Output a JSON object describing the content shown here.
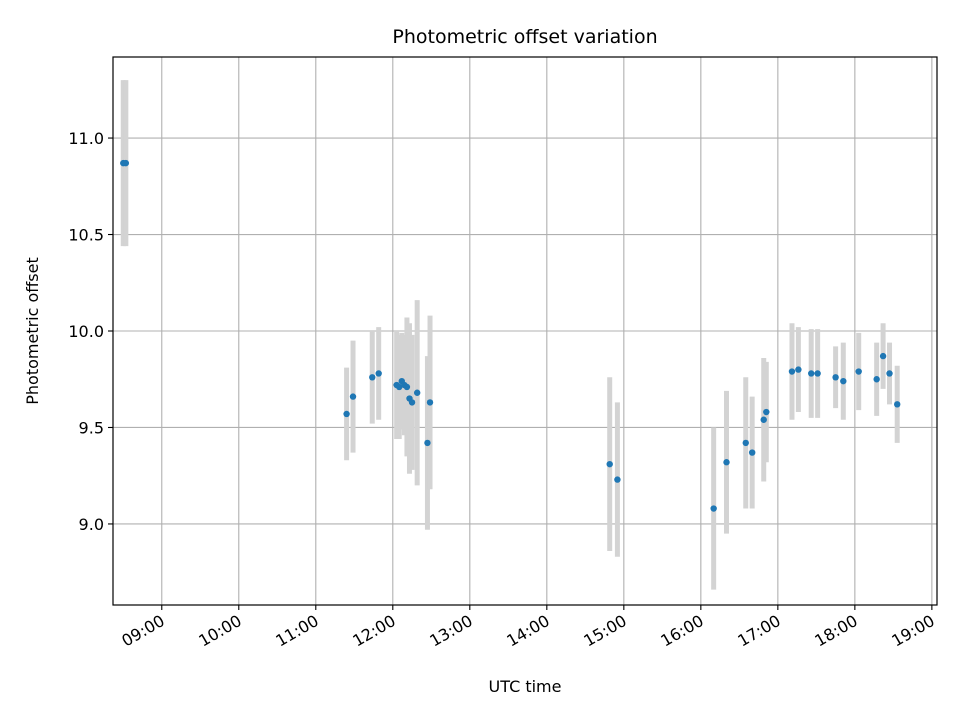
{
  "chart_data": {
    "type": "scatter",
    "title": "Photometric offset variation",
    "xlabel": "UTC time",
    "ylabel": "Photometric offset",
    "x_is_time": true,
    "xlim": [
      "08:22",
      "19:04"
    ],
    "ylim": [
      8.58,
      11.42
    ],
    "x_ticks": [
      "09:00",
      "10:00",
      "11:00",
      "12:00",
      "13:00",
      "14:00",
      "15:00",
      "16:00",
      "17:00",
      "18:00",
      "19:00"
    ],
    "y_ticks": [
      9.0,
      9.5,
      10.0,
      10.5,
      11.0
    ],
    "grid": true,
    "marker_color": "#1f77b4",
    "errorbar_color": "#d3d3d3",
    "points": [
      {
        "x": "08:30",
        "y": 10.87,
        "err": 0.43
      },
      {
        "x": "08:32",
        "y": 10.87,
        "err": 0.43
      },
      {
        "x": "11:24",
        "y": 9.57,
        "err": 0.24
      },
      {
        "x": "11:29",
        "y": 9.66,
        "err": 0.29
      },
      {
        "x": "11:44",
        "y": 9.76,
        "err": 0.24
      },
      {
        "x": "11:49",
        "y": 9.78,
        "err": 0.24
      },
      {
        "x": "12:03",
        "y": 9.72,
        "err": 0.28
      },
      {
        "x": "12:05",
        "y": 9.71,
        "err": 0.27
      },
      {
        "x": "12:07",
        "y": 9.74,
        "err": 0.25
      },
      {
        "x": "12:09",
        "y": 9.72,
        "err": 0.26
      },
      {
        "x": "12:11",
        "y": 9.71,
        "err": 0.36
      },
      {
        "x": "12:13",
        "y": 9.65,
        "err": 0.39
      },
      {
        "x": "12:15",
        "y": 9.63,
        "err": 0.35
      },
      {
        "x": "12:19",
        "y": 9.68,
        "err": 0.48
      },
      {
        "x": "12:27",
        "y": 9.42,
        "err": 0.45
      },
      {
        "x": "12:29",
        "y": 9.63,
        "err": 0.45
      },
      {
        "x": "14:49",
        "y": 9.31,
        "err": 0.45
      },
      {
        "x": "14:55",
        "y": 9.23,
        "err": 0.4
      },
      {
        "x": "16:10",
        "y": 9.08,
        "err": 0.42
      },
      {
        "x": "16:20",
        "y": 9.32,
        "err": 0.37
      },
      {
        "x": "16:35",
        "y": 9.42,
        "err": 0.34
      },
      {
        "x": "16:40",
        "y": 9.37,
        "err": 0.29
      },
      {
        "x": "16:49",
        "y": 9.54,
        "err": 0.32
      },
      {
        "x": "16:51",
        "y": 9.58,
        "err": 0.26
      },
      {
        "x": "17:11",
        "y": 9.79,
        "err": 0.25
      },
      {
        "x": "17:16",
        "y": 9.8,
        "err": 0.22
      },
      {
        "x": "17:26",
        "y": 9.78,
        "err": 0.23
      },
      {
        "x": "17:31",
        "y": 9.78,
        "err": 0.23
      },
      {
        "x": "17:45",
        "y": 9.76,
        "err": 0.16
      },
      {
        "x": "17:51",
        "y": 9.74,
        "err": 0.2
      },
      {
        "x": "18:03",
        "y": 9.79,
        "err": 0.2
      },
      {
        "x": "18:17",
        "y": 9.75,
        "err": 0.19
      },
      {
        "x": "18:22",
        "y": 9.87,
        "err": 0.17
      },
      {
        "x": "18:27",
        "y": 9.78,
        "err": 0.16
      },
      {
        "x": "18:33",
        "y": 9.62,
        "err": 0.2
      }
    ]
  }
}
